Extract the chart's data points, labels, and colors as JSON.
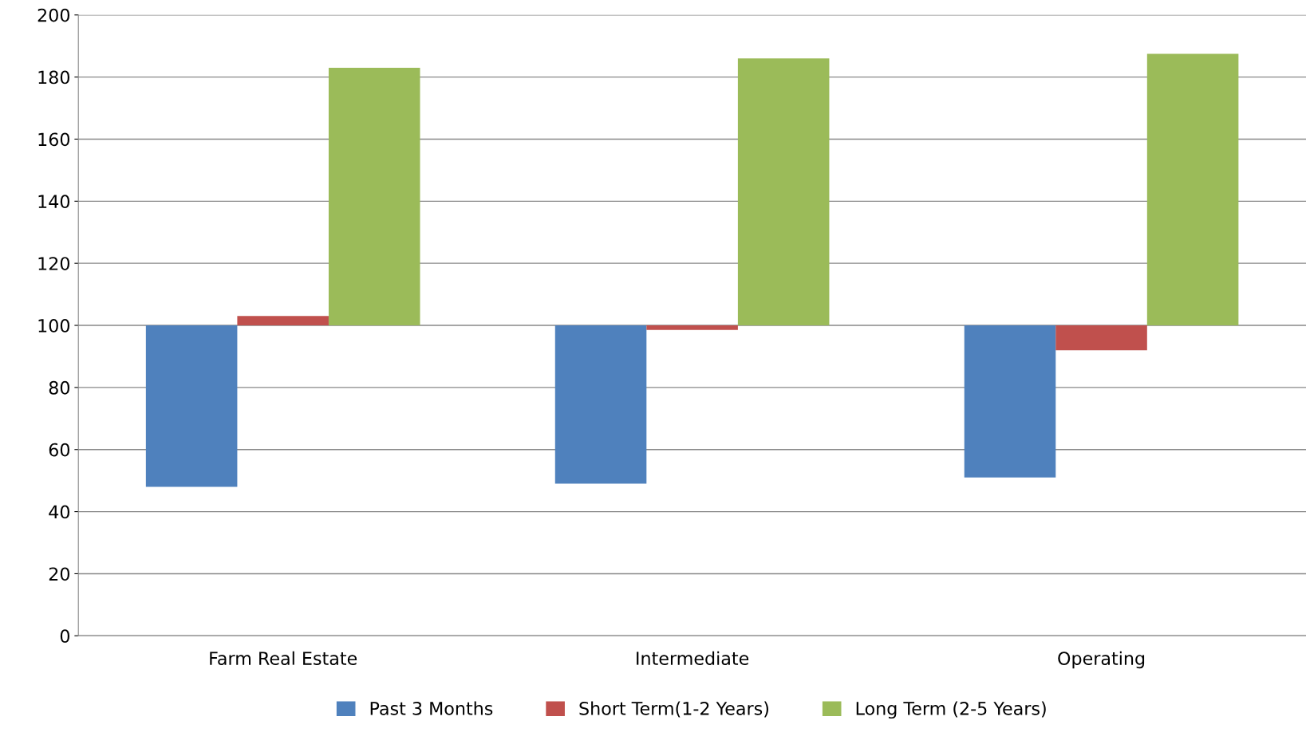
{
  "chart_data": {
    "type": "bar",
    "categories": [
      "Farm Real Estate",
      "Intermediate",
      "Operating"
    ],
    "series": [
      {
        "name": "Past 3 Months",
        "color": "#4f81bd",
        "base": [
          100,
          100,
          100
        ],
        "values": [
          -52,
          -51,
          -49
        ]
      },
      {
        "name": "Short Term(1-2 Years)",
        "color": "#c0504d",
        "base": [
          100,
          100,
          100
        ],
        "values": [
          3,
          -1.5,
          -8
        ]
      },
      {
        "name": "Long Term (2-5 Years)",
        "color": "#9bbb59",
        "base": [
          100,
          100,
          100
        ],
        "values": [
          83,
          86,
          87.5
        ]
      }
    ],
    "ylim": [
      0,
      200
    ],
    "yticks": [
      0,
      20,
      40,
      60,
      80,
      100,
      120,
      140,
      160,
      180,
      200
    ],
    "grid": "y",
    "legend": "bottom"
  }
}
